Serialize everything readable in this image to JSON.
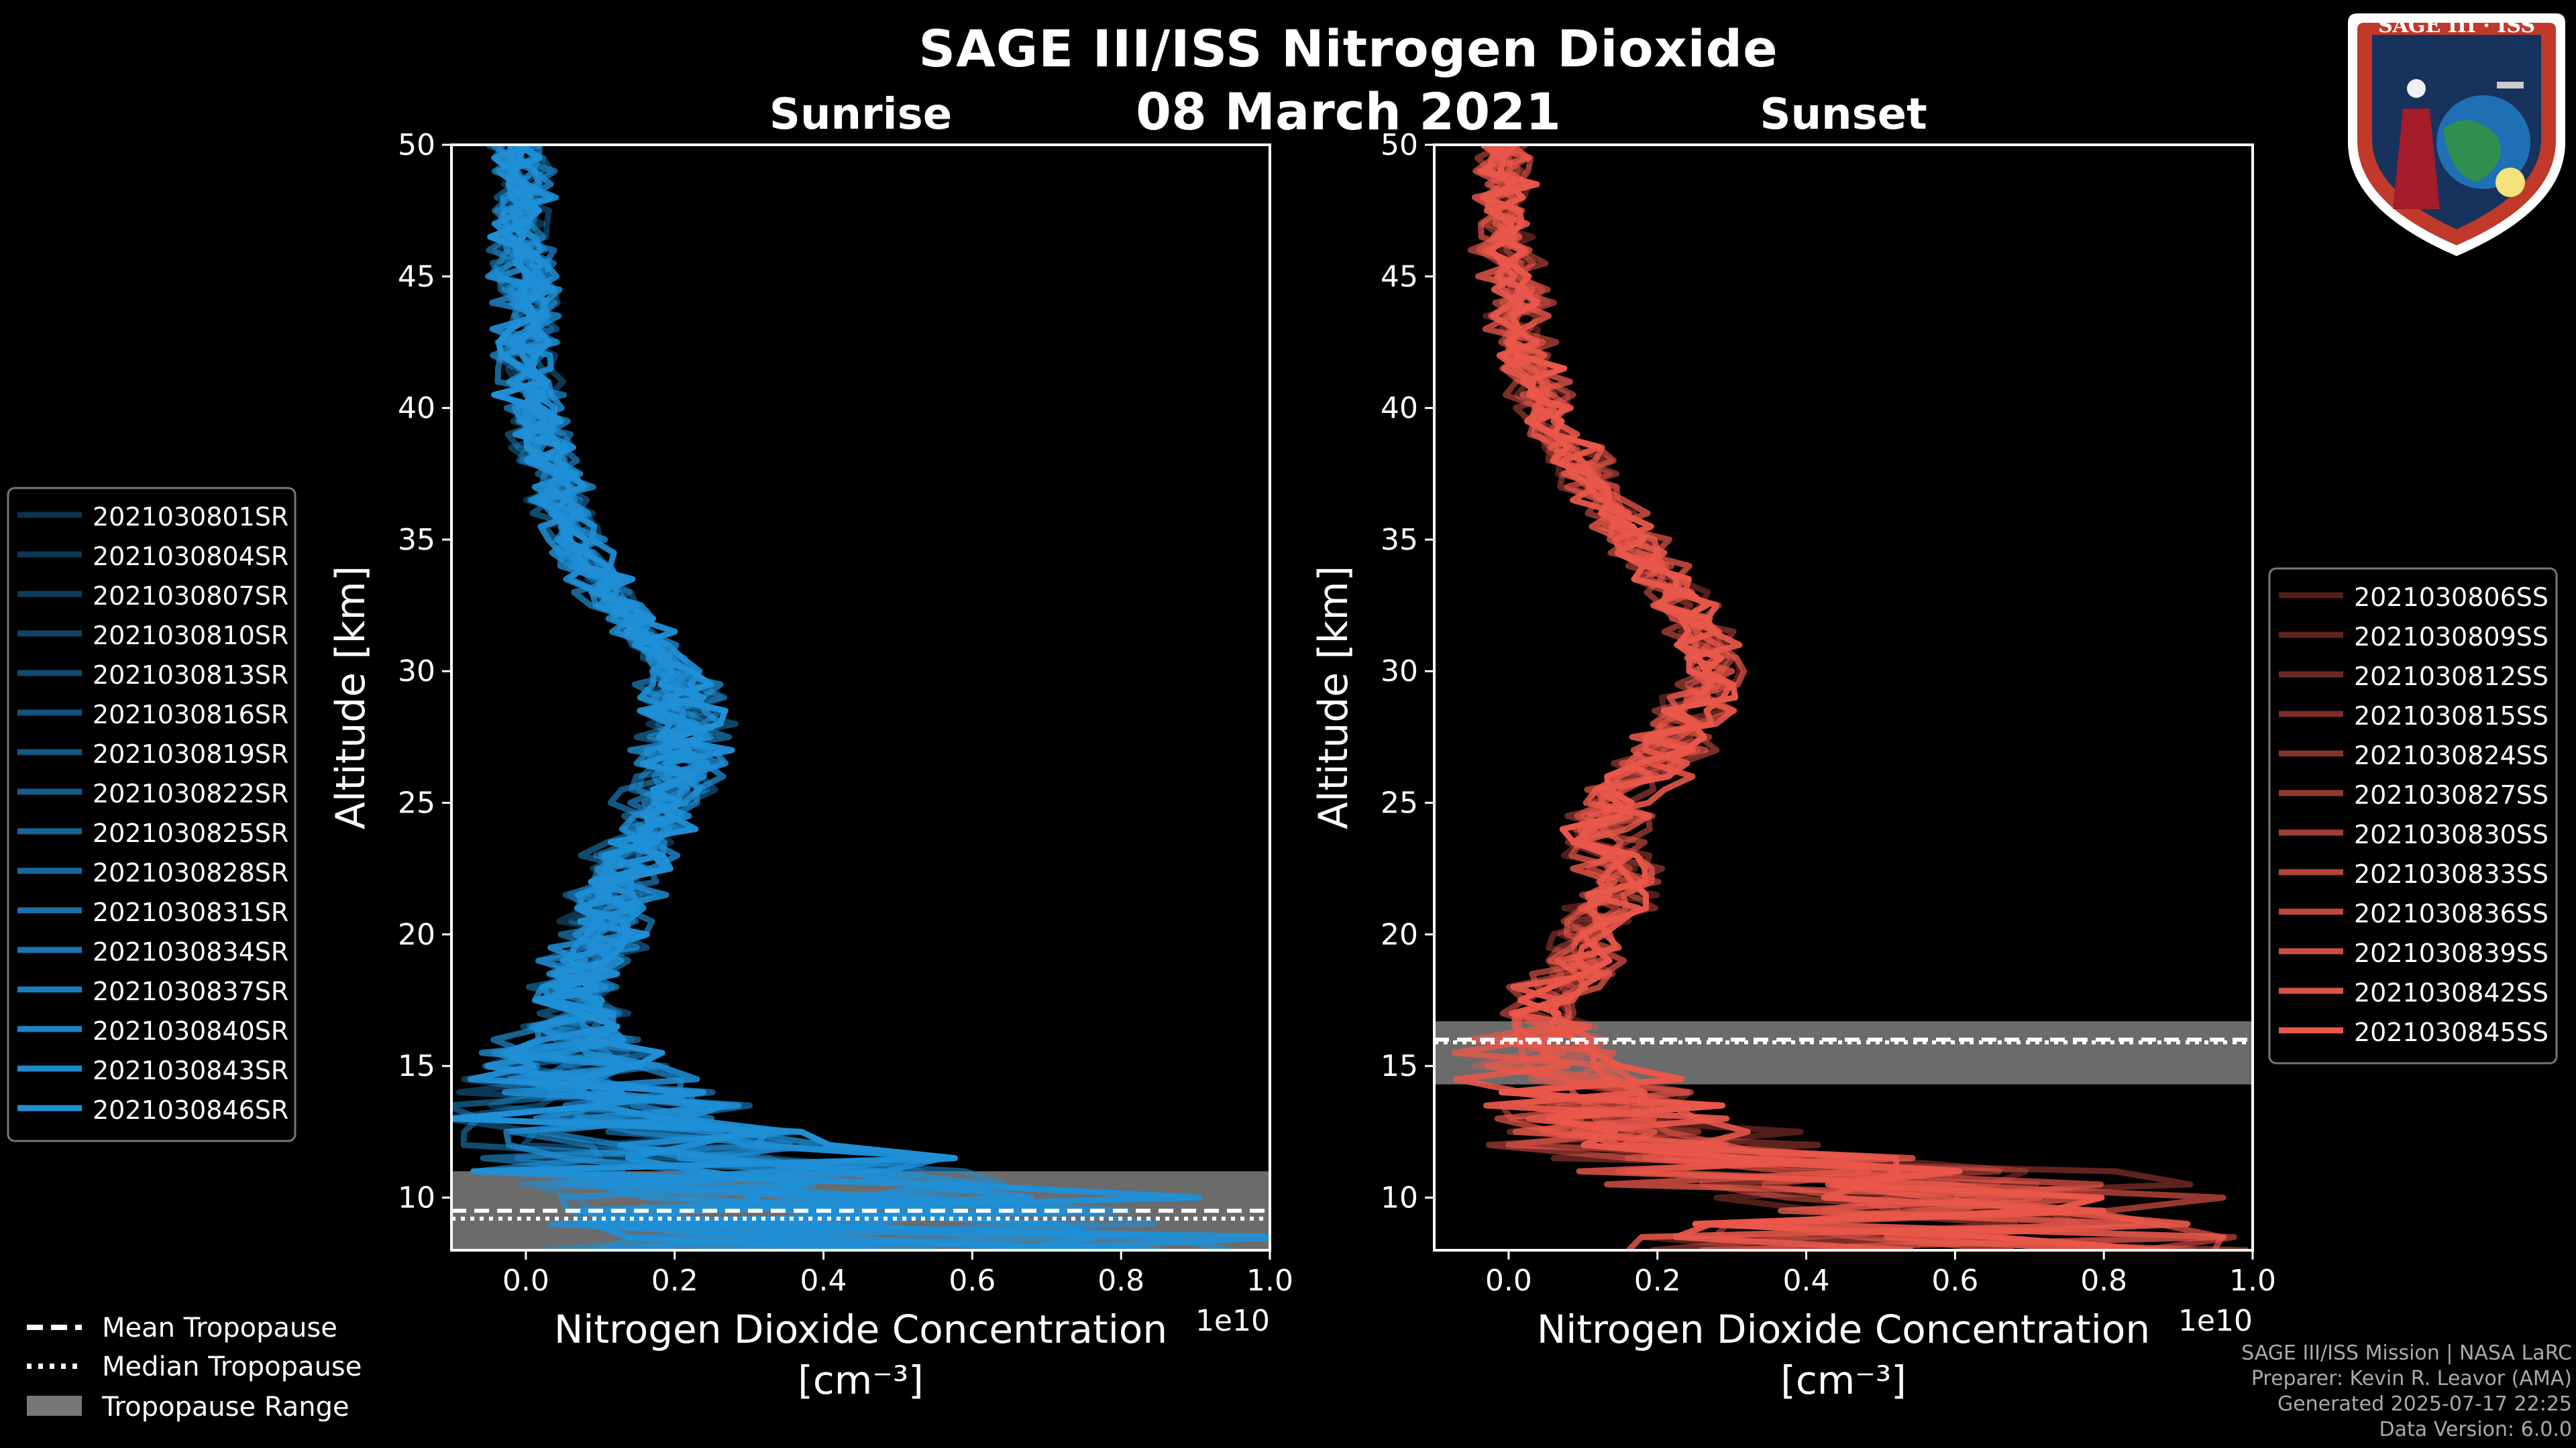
{
  "title": "SAGE III/ISS Nitrogen Dioxide",
  "date": "08 March 2021",
  "logo_text": "SAGE III · ISS",
  "footer": {
    "line1": "SAGE III/ISS Mission | NASA LaRC",
    "line2": "Preparer: Kevin R. Leavor (AMA)",
    "line3": "Generated 2025-07-17 22:25",
    "line4": "Data Version: 6.0.0"
  },
  "bottom_legend": [
    "Mean Tropopause",
    "Median Tropopause",
    "Tropopause Range"
  ],
  "colors": {
    "sunrise": "#1f8fd6",
    "sunset": "#e8574a",
    "tropopause_fill": "#777777"
  },
  "chart_data": [
    {
      "type": "line",
      "title": "Sunrise",
      "xlabel": "Nitrogen Dioxide Concentration",
      "xlabel_unit": "[cm⁻³]",
      "x_scale_label": "1e10",
      "ylabel": "Altitude [km]",
      "xlim": [
        -0.1,
        1.0
      ],
      "ylim": [
        8,
        50
      ],
      "xticks": [
        "0.0",
        "0.2",
        "0.4",
        "0.6",
        "0.8",
        "1.0"
      ],
      "yticks": [
        "10",
        "15",
        "20",
        "25",
        "30",
        "35",
        "40",
        "45",
        "50"
      ],
      "legend_placement": "left",
      "series_names": [
        "2021030801SR",
        "2021030804SR",
        "2021030807SR",
        "2021030810SR",
        "2021030813SR",
        "2021030816SR",
        "2021030819SR",
        "2021030822SR",
        "2021030825SR",
        "2021030828SR",
        "2021030831SR",
        "2021030834SR",
        "2021030837SR",
        "2021030840SR",
        "2021030843SR",
        "2021030846SR"
      ],
      "profile_altitude_km": [
        9,
        10,
        11,
        12,
        13,
        14,
        15,
        16,
        17,
        18,
        20,
        22,
        24,
        26,
        28,
        30,
        32,
        34,
        36,
        38,
        40,
        42,
        44,
        46,
        48,
        50
      ],
      "mean_profile_e10": [
        0.45,
        0.35,
        0.25,
        0.15,
        0.12,
        0.08,
        0.06,
        0.06,
        0.08,
        0.06,
        0.1,
        0.13,
        0.16,
        0.2,
        0.22,
        0.2,
        0.14,
        0.08,
        0.05,
        0.03,
        0.01,
        0.0,
        0.0,
        0.0,
        0.0,
        0.0
      ],
      "tropopause": {
        "mean_km": 9.5,
        "median_km": 9.2,
        "range_km": [
          8.0,
          11.0
        ]
      }
    },
    {
      "type": "line",
      "title": "Sunset",
      "xlabel": "Nitrogen Dioxide Concentration",
      "xlabel_unit": "[cm⁻³]",
      "x_scale_label": "1e10",
      "ylabel": "Altitude [km]",
      "xlim": [
        -0.1,
        1.0
      ],
      "ylim": [
        8,
        50
      ],
      "xticks": [
        "0.0",
        "0.2",
        "0.4",
        "0.6",
        "0.8",
        "1.0"
      ],
      "yticks": [
        "10",
        "15",
        "20",
        "25",
        "30",
        "35",
        "40",
        "45",
        "50"
      ],
      "legend_placement": "right",
      "series_names": [
        "2021030806SS",
        "2021030809SS",
        "2021030812SS",
        "2021030815SS",
        "2021030824SS",
        "2021030827SS",
        "2021030830SS",
        "2021030833SS",
        "2021030836SS",
        "2021030839SS",
        "2021030842SS",
        "2021030845SS"
      ],
      "profile_altitude_km": [
        9,
        10,
        11,
        12,
        13,
        14,
        15,
        16,
        17,
        18,
        20,
        22,
        24,
        26,
        28,
        30,
        32,
        34,
        36,
        38,
        40,
        42,
        44,
        46,
        48,
        50
      ],
      "mean_profile_e10": [
        0.6,
        0.45,
        0.35,
        0.2,
        0.12,
        0.1,
        0.06,
        0.05,
        0.04,
        0.06,
        0.12,
        0.15,
        0.12,
        0.18,
        0.24,
        0.28,
        0.25,
        0.2,
        0.14,
        0.09,
        0.05,
        0.03,
        0.01,
        0.0,
        -0.01,
        0.0
      ],
      "tropopause": {
        "mean_km": 16.0,
        "median_km": 15.9,
        "range_km": [
          14.3,
          16.7
        ]
      }
    }
  ]
}
